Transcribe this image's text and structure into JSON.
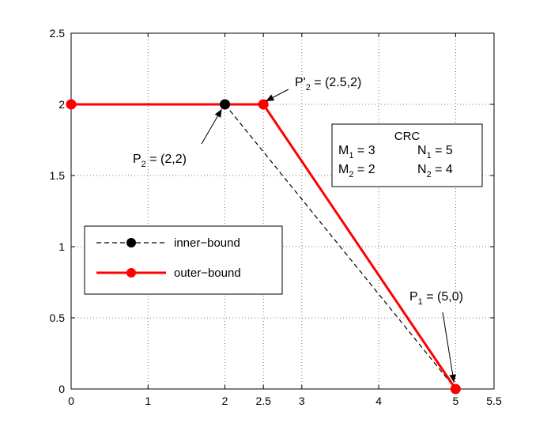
{
  "chart_data": {
    "type": "line",
    "xlim": [
      0,
      5.5
    ],
    "ylim": [
      0,
      2.5
    ],
    "xticks": [
      0,
      1,
      2,
      2.5,
      3,
      4,
      5,
      5.5
    ],
    "xtick_labels": [
      "0",
      "1",
      "2",
      "2.5",
      "3",
      "4",
      "5",
      "5.5"
    ],
    "yticks": [
      0,
      0.5,
      1,
      1.5,
      2,
      2.5
    ],
    "ytick_labels": [
      "0",
      "0.5",
      "1",
      "1.5",
      "2",
      "2.5"
    ],
    "grid": true,
    "legend_position": "center-left",
    "series": [
      {
        "name": "inner−bound",
        "style": "dashed",
        "color": "#000000",
        "x": [
          2,
          5
        ],
        "y": [
          2,
          0
        ],
        "markers": [
          [
            2,
            2
          ]
        ]
      },
      {
        "name": "outer−bound",
        "style": "solid",
        "color": "#ff0000",
        "x": [
          0,
          2.5,
          5
        ],
        "y": [
          2,
          2,
          0
        ],
        "markers": [
          [
            0,
            2
          ],
          [
            2.5,
            2
          ],
          [
            5,
            0
          ]
        ]
      }
    ],
    "annotations": [
      {
        "base": "P",
        "sub": "2",
        "suffix": " = (2,2)",
        "target": [
          2,
          2
        ]
      },
      {
        "base": "P'",
        "sub": "2",
        "suffix": " = (2.5,2)",
        "target": [
          2.5,
          2
        ]
      },
      {
        "base": "P",
        "sub": "1",
        "suffix": " = (5,0)",
        "target": [
          5,
          0
        ]
      }
    ],
    "info_box": {
      "title": "CRC",
      "entries": [
        {
          "base": "M",
          "sub": "1",
          "suffix": " = 3"
        },
        {
          "base": "N",
          "sub": "1",
          "suffix": " = 5"
        },
        {
          "base": "M",
          "sub": "2",
          "suffix": " = 2"
        },
        {
          "base": "N",
          "sub": "2",
          "suffix": " = 4"
        }
      ]
    }
  }
}
